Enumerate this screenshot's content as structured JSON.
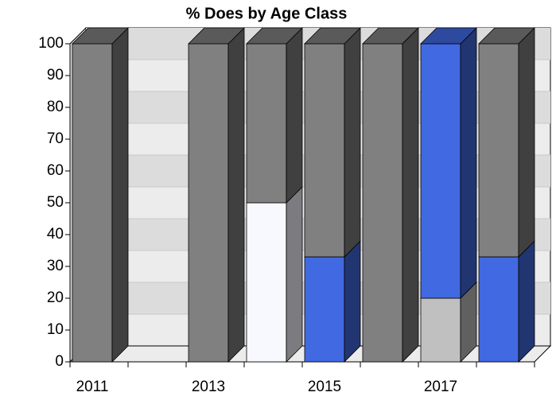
{
  "chart_data": {
    "type": "bar",
    "stacked": true,
    "title": "% Does by Age Class",
    "categories": [
      "2011",
      null,
      "2013",
      null,
      "2015",
      null,
      "2017",
      null
    ],
    "series": [
      {
        "color": "#c0c0c0",
        "values": [
          0,
          0,
          0,
          0,
          0,
          0,
          20,
          0
        ]
      },
      {
        "color": "#f8f8ff",
        "values": [
          0,
          0,
          0,
          50,
          0,
          0,
          0,
          0
        ]
      },
      {
        "color": "#4169e1",
        "values": [
          0,
          0,
          0,
          0,
          33,
          0,
          80,
          33
        ]
      },
      {
        "color": "#808080",
        "values": [
          100,
          0,
          100,
          50,
          67,
          100,
          0,
          67
        ]
      }
    ],
    "ylim": [
      0,
      100
    ],
    "yticks": [
      0,
      10,
      20,
      30,
      40,
      50,
      60,
      70,
      80,
      90,
      100
    ],
    "grid": true
  }
}
